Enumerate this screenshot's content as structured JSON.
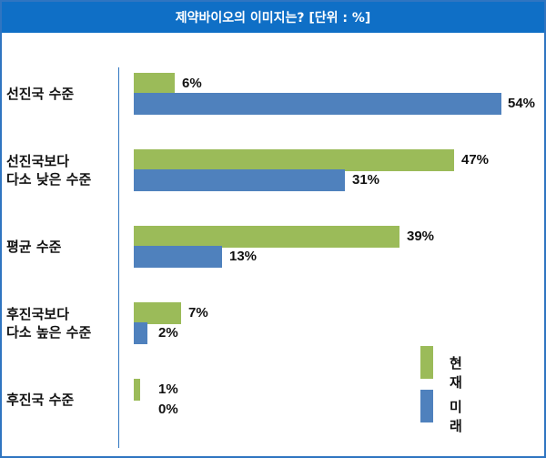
{
  "colors": {
    "current": "#9bbb59",
    "future": "#4f81bd",
    "title_bg": "#0f6fc6",
    "title_text": "#ffffff"
  },
  "chart_data": {
    "type": "bar",
    "orientation": "horizontal",
    "title": "제약바이오의 이미지는? [단위 : %]",
    "categories": [
      [
        "선진국 수준"
      ],
      [
        "선진국보다",
        "다소 낮은 수준"
      ],
      [
        "평균 수준"
      ],
      [
        "후진국보다",
        "다소 높은 수준"
      ],
      [
        "후진국 수준"
      ]
    ],
    "series": [
      {
        "name": "현재",
        "values": [
          6,
          47,
          39,
          7,
          1
        ],
        "labels": [
          "6%",
          "47%",
          "39%",
          "7%",
          "1%"
        ]
      },
      {
        "name": "미래",
        "values": [
          54,
          31,
          13,
          2,
          0
        ],
        "labels": [
          "54%",
          "31%",
          "13%",
          "2%",
          "0%"
        ]
      }
    ],
    "xlim": [
      0,
      54
    ],
    "legend": "bottom-right",
    "grid": false
  }
}
